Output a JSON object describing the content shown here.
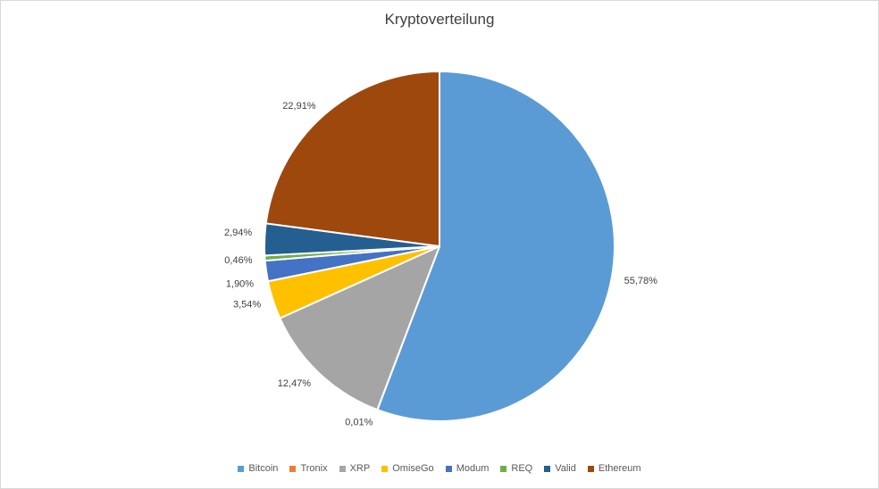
{
  "chart_data": {
    "type": "pie",
    "title": "Kryptoverteilung",
    "categories": [
      "Bitcoin",
      "Tronix",
      "XRP",
      "OmiseGo",
      "Modum",
      "REQ",
      "Valid",
      "Ethereum"
    ],
    "values": [
      55.78,
      0.01,
      12.47,
      3.54,
      1.9,
      0.46,
      2.94,
      22.91
    ],
    "data_labels": [
      "55,78%",
      "0,01%",
      "12,47%",
      "3,54%",
      "1,90%",
      "0,46%",
      "2,94%",
      "22,91%"
    ],
    "colors": [
      "#5b9bd5",
      "#ed7d31",
      "#a5a5a5",
      "#ffc000",
      "#4472c4",
      "#70ad47",
      "#255e91",
      "#9e480e"
    ],
    "legend_position": "bottom",
    "start_angle": "12 o'clock, clockwise"
  }
}
